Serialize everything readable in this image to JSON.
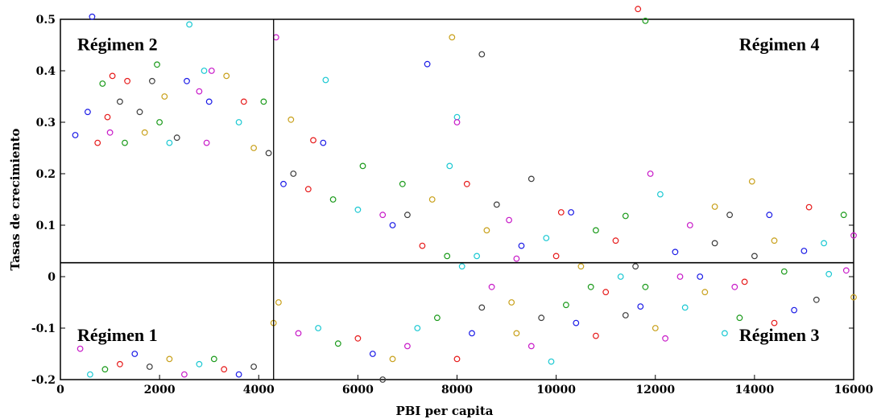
{
  "chart_data": {
    "type": "scatter",
    "title": "",
    "xlabel": "PBI per capita",
    "ylabel": "Tasas de crecimiento",
    "xlim": [
      0,
      16000
    ],
    "ylim": [
      -0.2,
      0.5
    ],
    "x_ticks": [
      "0",
      "2000",
      "4000",
      "6000",
      "8000",
      "10000",
      "12000",
      "14000",
      "16000"
    ],
    "y_ticks": [
      "0.5",
      "0.4",
      "0.3",
      "0.2",
      "0.1",
      "0",
      "-0.1",
      "-0.2"
    ],
    "threshold_x": 4300,
    "threshold_y": 0.027,
    "regimes": [
      {
        "label": "Régimen 2",
        "x": 1150,
        "y": 0.44
      },
      {
        "label": "Régimen 4",
        "x": 14500,
        "y": 0.44
      },
      {
        "label": "Régimen 1",
        "x": 1150,
        "y": -0.125
      },
      {
        "label": "Régimen 3",
        "x": 14500,
        "y": -0.125
      }
    ],
    "colors": [
      "#1a1ae6",
      "#e61a1a",
      "#1a9a1a",
      "#1ac8d2",
      "#c81ac8",
      "#c8a01a",
      "#3c3c3c"
    ],
    "points": [
      [
        640,
        0.505
      ],
      [
        11650,
        0.52
      ],
      [
        11800,
        0.497
      ],
      [
        2600,
        0.49
      ],
      [
        4350,
        0.465
      ],
      [
        7900,
        0.465
      ],
      [
        8500,
        0.432
      ],
      [
        7400,
        0.413
      ],
      [
        1050,
        0.39
      ],
      [
        1950,
        0.412
      ],
      [
        2900,
        0.4
      ],
      [
        3050,
        0.4
      ],
      [
        3350,
        0.39
      ],
      [
        1850,
        0.38
      ],
      [
        2550,
        0.38
      ],
      [
        1350,
        0.38
      ],
      [
        850,
        0.375
      ],
      [
        5350,
        0.382
      ],
      [
        2800,
        0.36
      ],
      [
        2100,
        0.35
      ],
      [
        1200,
        0.34
      ],
      [
        3000,
        0.34
      ],
      [
        3700,
        0.34
      ],
      [
        4100,
        0.34
      ],
      [
        8000,
        0.31
      ],
      [
        8000,
        0.3
      ],
      [
        4650,
        0.305
      ],
      [
        1600,
        0.32
      ],
      [
        550,
        0.32
      ],
      [
        950,
        0.31
      ],
      [
        2000,
        0.3
      ],
      [
        3600,
        0.3
      ],
      [
        1000,
        0.28
      ],
      [
        1700,
        0.28
      ],
      [
        2350,
        0.27
      ],
      [
        300,
        0.275
      ],
      [
        750,
        0.26
      ],
      [
        1300,
        0.26
      ],
      [
        2200,
        0.26
      ],
      [
        2950,
        0.26
      ],
      [
        3900,
        0.25
      ],
      [
        4200,
        0.24
      ],
      [
        5300,
        0.26
      ],
      [
        5100,
        0.265
      ],
      [
        6100,
        0.215
      ],
      [
        7850,
        0.215
      ],
      [
        11900,
        0.2
      ],
      [
        13950,
        0.185
      ],
      [
        9500,
        0.19
      ],
      [
        10300,
        0.125
      ],
      [
        10100,
        0.125
      ],
      [
        11400,
        0.118
      ],
      [
        12100,
        0.16
      ],
      [
        12700,
        0.1
      ],
      [
        13200,
        0.136
      ],
      [
        13500,
        0.12
      ],
      [
        14300,
        0.12
      ],
      [
        15100,
        0.135
      ],
      [
        15800,
        0.12
      ],
      [
        15400,
        0.065
      ],
      [
        16000,
        0.08
      ],
      [
        14400,
        0.07
      ],
      [
        13200,
        0.065
      ],
      [
        12400,
        0.048
      ],
      [
        11200,
        0.07
      ],
      [
        10800,
        0.09
      ],
      [
        9800,
        0.075
      ],
      [
        9050,
        0.11
      ],
      [
        8600,
        0.09
      ],
      [
        7000,
        0.12
      ],
      [
        6700,
        0.1
      ],
      [
        8200,
        0.18
      ],
      [
        6900,
        0.18
      ],
      [
        8400,
        0.04
      ],
      [
        9200,
        0.035
      ],
      [
        10500,
        0.02
      ],
      [
        11600,
        0.02
      ],
      [
        12900,
        0.0
      ],
      [
        13800,
        -0.01
      ],
      [
        14600,
        0.01
      ],
      [
        15500,
        0.005
      ],
      [
        15850,
        0.012
      ],
      [
        16000,
        -0.04
      ],
      [
        15250,
        -0.045
      ],
      [
        14800,
        -0.065
      ],
      [
        14400,
        -0.09
      ],
      [
        13700,
        -0.08
      ],
      [
        13400,
        -0.11
      ],
      [
        12200,
        -0.12
      ],
      [
        12000,
        -0.1
      ],
      [
        11400,
        -0.075
      ],
      [
        11700,
        -0.058
      ],
      [
        10800,
        -0.115
      ],
      [
        10200,
        -0.055
      ],
      [
        9900,
        -0.165
      ],
      [
        9500,
        -0.135
      ],
      [
        9200,
        -0.11
      ],
      [
        8500,
        -0.06
      ],
      [
        8300,
        -0.11
      ],
      [
        8000,
        -0.16
      ],
      [
        7600,
        -0.08
      ],
      [
        7200,
        -0.1
      ],
      [
        7000,
        -0.135
      ],
      [
        6700,
        -0.16
      ],
      [
        6500,
        -0.2
      ],
      [
        6300,
        -0.15
      ],
      [
        6000,
        -0.12
      ],
      [
        5600,
        -0.13
      ],
      [
        5200,
        -0.1
      ],
      [
        4800,
        -0.11
      ],
      [
        4300,
        -0.09
      ],
      [
        3900,
        -0.175
      ],
      [
        3600,
        -0.19
      ],
      [
        3300,
        -0.18
      ],
      [
        3100,
        -0.16
      ],
      [
        2800,
        -0.17
      ],
      [
        2500,
        -0.19
      ],
      [
        2200,
        -0.16
      ],
      [
        1800,
        -0.175
      ],
      [
        1500,
        -0.15
      ],
      [
        1200,
        -0.17
      ],
      [
        900,
        -0.18
      ],
      [
        600,
        -0.19
      ],
      [
        400,
        -0.14
      ],
      [
        4400,
        -0.05
      ],
      [
        4700,
        0.2
      ],
      [
        4500,
        0.18
      ],
      [
        5000,
        0.17
      ],
      [
        5500,
        0.15
      ],
      [
        6000,
        0.13
      ],
      [
        6500,
        0.12
      ],
      [
        7500,
        0.15
      ],
      [
        8800,
        0.14
      ],
      [
        9300,
        0.06
      ],
      [
        10000,
        0.04
      ],
      [
        10700,
        -0.02
      ],
      [
        11300,
        0.0
      ],
      [
        12500,
        0.0
      ],
      [
        13000,
        -0.03
      ],
      [
        14000,
        0.04
      ],
      [
        15000,
        0.05
      ],
      [
        7300,
        0.06
      ],
      [
        7800,
        0.04
      ],
      [
        8100,
        0.02
      ],
      [
        8700,
        -0.02
      ],
      [
        9100,
        -0.05
      ],
      [
        9700,
        -0.08
      ],
      [
        10400,
        -0.09
      ],
      [
        11000,
        -0.03
      ],
      [
        11800,
        -0.02
      ],
      [
        12600,
        -0.06
      ],
      [
        13600,
        -0.02
      ]
    ]
  }
}
